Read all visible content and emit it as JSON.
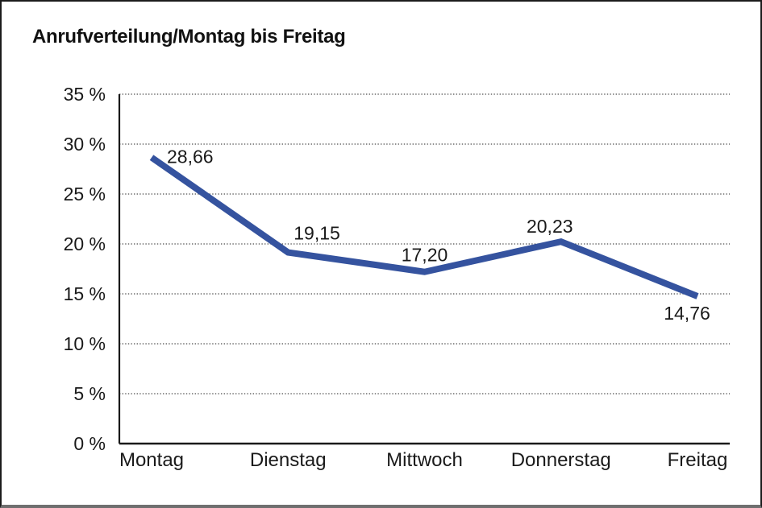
{
  "title": "Anrufverteilung/Montag bis Freitag",
  "chart_data": {
    "type": "line",
    "title": "Anrufverteilung/Montag bis Freitag",
    "categories": [
      "Montag",
      "Dienstag",
      "Mittwoch",
      "Donnerstag",
      "Freitag"
    ],
    "series": [
      {
        "name": "Anrufverteilung",
        "values": [
          28.66,
          19.15,
          17.2,
          20.23,
          14.76
        ],
        "value_labels": [
          "28,66",
          "19,15",
          "17,20",
          "20,23",
          "14,76"
        ]
      }
    ],
    "xlabel": "",
    "ylabel": "",
    "ylim": [
      0,
      35
    ],
    "ytick_step": 5,
    "ytick_labels": [
      "0 %",
      "5 %",
      "10 %",
      "15 %",
      "20 %",
      "25 %",
      "30 %",
      "35 %"
    ],
    "grid": "horizontal-dotted",
    "legend_position": "none",
    "line_color": "#35539F",
    "axis_color": "#1a1a1a",
    "grid_color": "#4d4d4d",
    "label_color": "#1a1a1a"
  }
}
